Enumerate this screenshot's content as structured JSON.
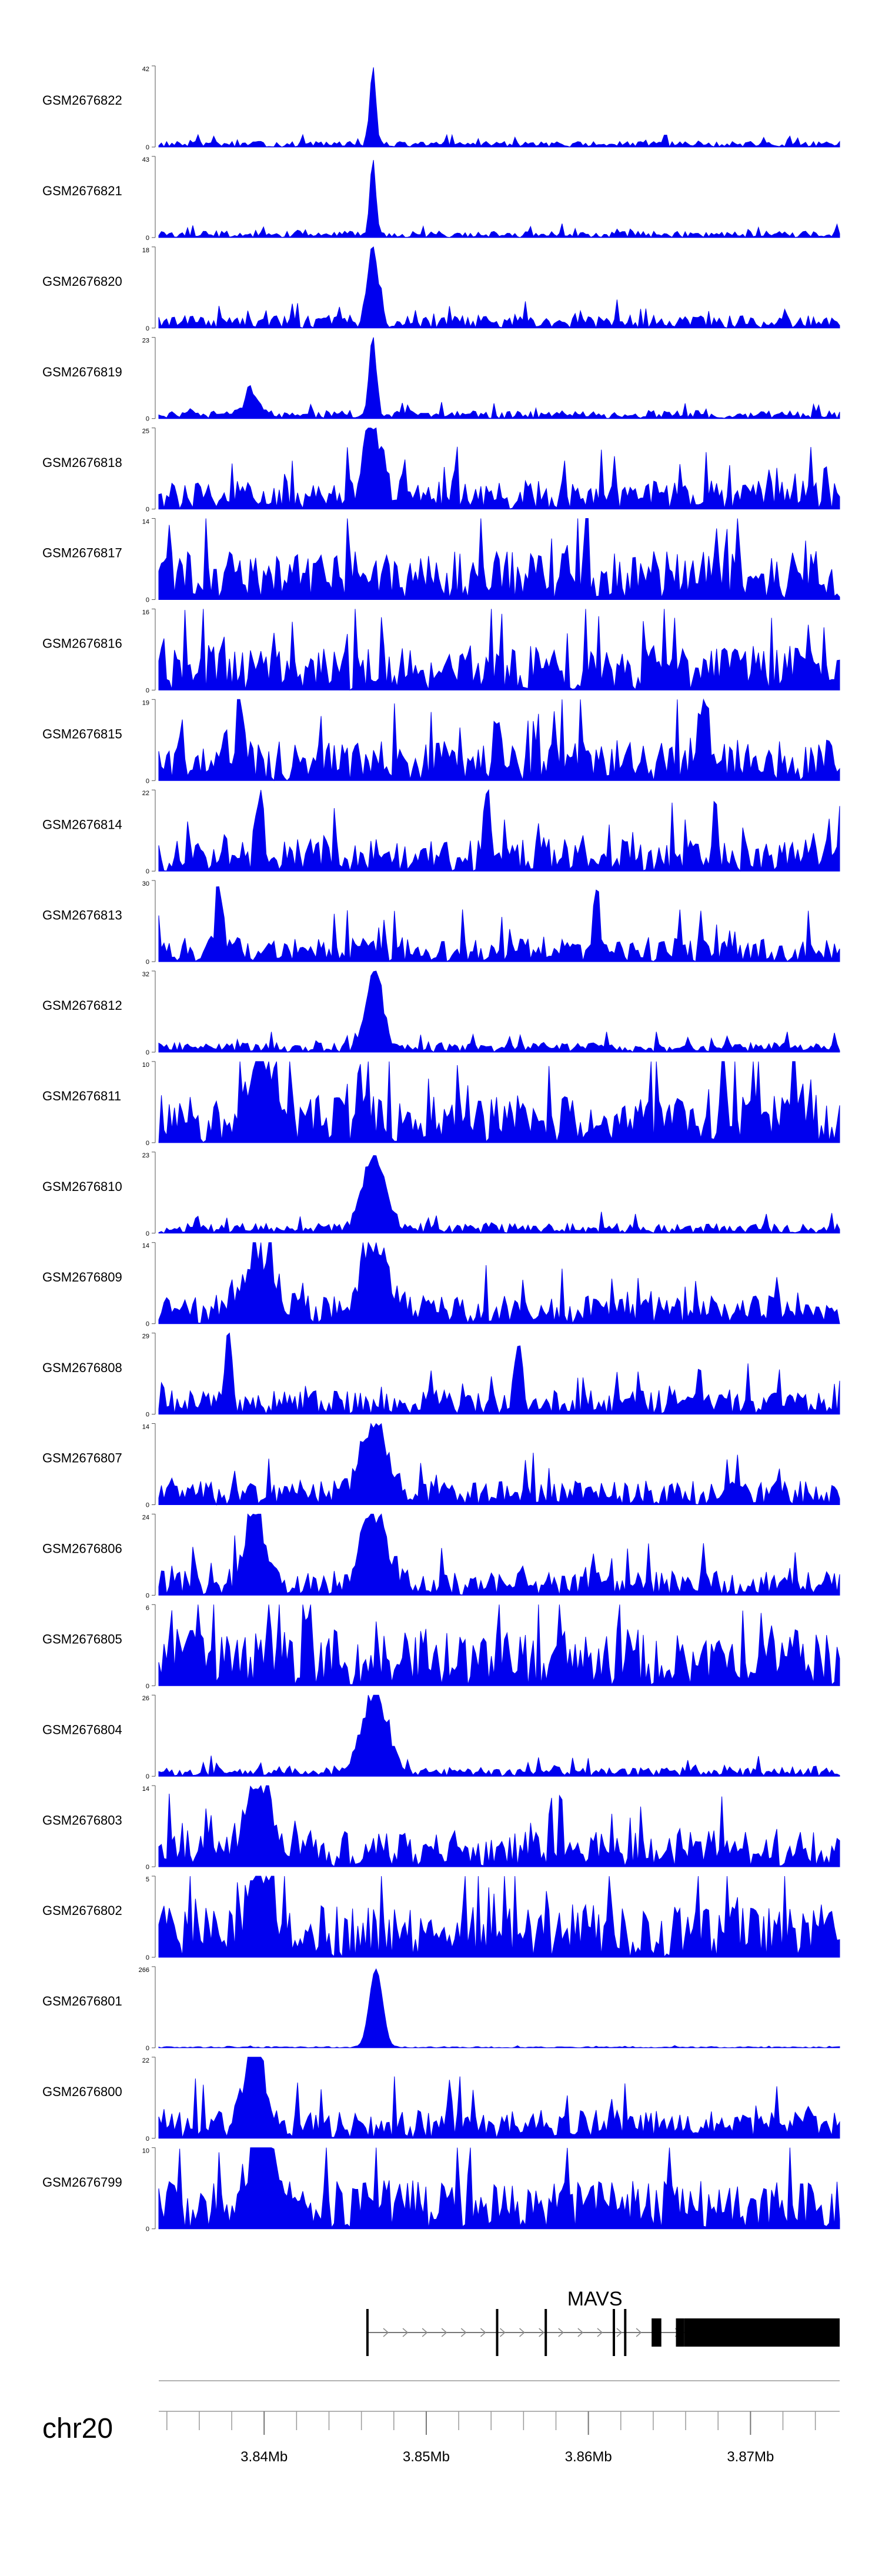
{
  "chart_data": {
    "type": "area",
    "title": "",
    "region": {
      "chromosome": "chr20",
      "start_mb": 3.8335,
      "end_mb": 3.8755
    },
    "axis": {
      "major_ticks_mb": [
        3.84,
        3.85,
        3.86,
        3.87
      ],
      "major_labels": [
        "3.84Mb",
        "3.85Mb",
        "3.86Mb",
        "3.87Mb"
      ],
      "minor_step_mb": 0.002
    },
    "series_color": "#0000ee",
    "tracks": [
      {
        "name": "GSM2676822",
        "ymax": 42,
        "noise": 0.07,
        "peaks": [
          [
            3.8467,
            0.95,
            0.00018
          ]
        ]
      },
      {
        "name": "GSM2676821",
        "ymax": 43,
        "noise": 0.08,
        "peaks": [
          [
            3.8467,
            0.95,
            0.00018
          ]
        ]
      },
      {
        "name": "GSM2676820",
        "ymax": 18,
        "noise": 0.16,
        "peaks": [
          [
            3.8467,
            0.9,
            0.0003
          ]
        ]
      },
      {
        "name": "GSM2676819",
        "ymax": 23,
        "noise": 0.1,
        "peaks": [
          [
            3.8467,
            0.95,
            0.00022
          ],
          [
            3.8392,
            0.25,
            0.0004
          ]
        ]
      },
      {
        "name": "GSM2676818",
        "ymax": 25,
        "noise": 0.35,
        "peaks": [
          [
            3.8467,
            0.95,
            0.0005
          ]
        ]
      },
      {
        "name": "GSM2676817",
        "ymax": 14,
        "noise": 0.6,
        "peaks": []
      },
      {
        "name": "GSM2676816",
        "ymax": 16,
        "noise": 0.55,
        "peaks": []
      },
      {
        "name": "GSM2676815",
        "ymax": 19,
        "noise": 0.5,
        "peaks": [
          [
            3.8385,
            0.9,
            0.0002
          ],
          [
            3.8672,
            0.95,
            0.0002
          ]
        ]
      },
      {
        "name": "GSM2676814",
        "ymax": 22,
        "noise": 0.4,
        "peaks": [
          [
            3.8397,
            0.8,
            0.0002
          ],
          [
            3.8538,
            0.8,
            0.0002
          ]
        ]
      },
      {
        "name": "GSM2676813",
        "ymax": 30,
        "noise": 0.3,
        "peaks": [
          [
            3.8372,
            0.9,
            0.0002
          ],
          [
            3.8605,
            0.75,
            0.0002
          ]
        ]
      },
      {
        "name": "GSM2676812",
        "ymax": 32,
        "noise": 0.12,
        "peaks": [
          [
            3.8468,
            0.95,
            0.0005
          ]
        ]
      },
      {
        "name": "GSM2676811",
        "ymax": 10,
        "noise": 0.6,
        "peaks": [
          [
            3.8398,
            0.85,
            0.0008
          ]
        ]
      },
      {
        "name": "GSM2676810",
        "ymax": 23,
        "noise": 0.12,
        "peaks": [
          [
            3.8468,
            0.9,
            0.0007
          ]
        ]
      },
      {
        "name": "GSM2676809",
        "ymax": 14,
        "noise": 0.35,
        "peaks": [
          [
            3.8468,
            0.85,
            0.0008
          ],
          [
            3.8395,
            0.6,
            0.001
          ]
        ]
      },
      {
        "name": "GSM2676808",
        "ymax": 29,
        "noise": 0.3,
        "peaks": [
          [
            3.8378,
            0.9,
            0.0002
          ],
          [
            3.8557,
            0.85,
            0.0002
          ]
        ]
      },
      {
        "name": "GSM2676807",
        "ymax": 14,
        "noise": 0.3,
        "peaks": [
          [
            3.8468,
            0.9,
            0.0008
          ]
        ]
      },
      {
        "name": "GSM2676806",
        "ymax": 24,
        "noise": 0.3,
        "peaks": [
          [
            3.8468,
            0.85,
            0.0008
          ],
          [
            3.8394,
            0.9,
            0.0006
          ]
        ]
      },
      {
        "name": "GSM2676805",
        "ymax": 6,
        "noise": 0.7,
        "peaks": []
      },
      {
        "name": "GSM2676804",
        "ymax": 26,
        "noise": 0.12,
        "peaks": [
          [
            3.8468,
            0.9,
            0.0008
          ]
        ]
      },
      {
        "name": "GSM2676803",
        "ymax": 14,
        "noise": 0.45,
        "peaks": [
          [
            3.8397,
            0.9,
            0.0008
          ]
        ]
      },
      {
        "name": "GSM2676802",
        "ymax": 5,
        "noise": 0.65,
        "peaks": [
          [
            3.8398,
            0.9,
            0.0006
          ]
        ]
      },
      {
        "name": "GSM2676801",
        "ymax": 266,
        "noise": 0.015,
        "peaks": [
          [
            3.8469,
            0.97,
            0.0004
          ]
        ]
      },
      {
        "name": "GSM2676800",
        "ymax": 22,
        "noise": 0.35,
        "peaks": [
          [
            3.8394,
            0.95,
            0.0006
          ]
        ]
      },
      {
        "name": "GSM2676799",
        "ymax": 10,
        "noise": 0.6,
        "peaks": [
          [
            3.8398,
            0.9,
            0.0008
          ]
        ]
      }
    ],
    "gene": {
      "name": "MAVS",
      "strand": "+",
      "start_mb": 3.8463,
      "end_mb": 3.8755,
      "exons": [
        {
          "start_mb": 3.8463,
          "end_mb": 3.84636,
          "type": "utr"
        },
        {
          "start_mb": 3.8543,
          "end_mb": 3.85438,
          "type": "utr"
        },
        {
          "start_mb": 3.8573,
          "end_mb": 3.85738,
          "type": "utr"
        },
        {
          "start_mb": 3.8615,
          "end_mb": 3.86158,
          "type": "utr"
        },
        {
          "start_mb": 3.8622,
          "end_mb": 3.86228,
          "type": "utr"
        },
        {
          "start_mb": 3.8639,
          "end_mb": 3.8645,
          "type": "coding"
        },
        {
          "start_mb": 3.8654,
          "end_mb": 3.8659,
          "type": "coding"
        },
        {
          "start_mb": 3.8659,
          "end_mb": 3.8755,
          "type": "coding"
        }
      ]
    }
  }
}
